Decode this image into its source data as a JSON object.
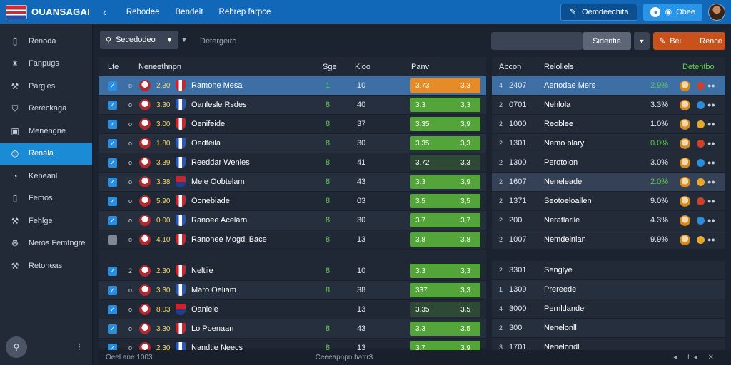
{
  "app": {
    "title": "OUANSAGAI"
  },
  "topnav": [
    "Rebodee",
    "Bendeit",
    "Rebrep farpce"
  ],
  "topright": {
    "primary_label": "Oemdeechita",
    "secondary_label": "Obee"
  },
  "sidebar": {
    "items": [
      {
        "label": "Renoda",
        "icon": "page-icon",
        "active": false
      },
      {
        "label": "Fanpugs",
        "icon": "gear-icon",
        "active": false
      },
      {
        "label": "Pargles",
        "icon": "tools-icon",
        "active": false
      },
      {
        "label": "Rereckaga",
        "icon": "shield-icon",
        "active": false
      },
      {
        "label": "Menengne",
        "icon": "window-icon",
        "active": false
      },
      {
        "label": "Renala",
        "icon": "globe-icon",
        "active": true
      },
      {
        "label": "Keneanl",
        "icon": "compass-icon",
        "active": false
      },
      {
        "label": "Femos",
        "icon": "page-icon",
        "active": false
      },
      {
        "label": "Fehlge",
        "icon": "tools-icon",
        "active": false
      },
      {
        "label": "Neros Femtngre",
        "icon": "wrench-icon",
        "active": false
      },
      {
        "label": "Retoheas",
        "icon": "tools-icon",
        "active": false
      }
    ]
  },
  "filter": {
    "dropdown_label": "Secedodeo",
    "hint": "Detergeiro",
    "select_label": "Sidentie",
    "action_left": "Bei",
    "action_right": "Rence"
  },
  "left_table": {
    "headers": {
      "c1": "Lte",
      "c2": "Neneethnpn",
      "c3": "Sge",
      "c4": "Kloo",
      "c5": "Panv"
    },
    "rows": [
      {
        "pos": "o",
        "rating": "2.30",
        "name": "Ramone Mesa",
        "num": "1",
        "val": "10",
        "b1": "3.73",
        "b2": "3,3",
        "bar": "o",
        "checked": true,
        "style": "sel",
        "club": "clubA"
      },
      {
        "pos": "o",
        "rating": "3.30",
        "name": "Oanlesle Rsdes",
        "num": "8",
        "val": "40",
        "b1": "3.3",
        "b2": "3,3",
        "bar": "g",
        "checked": true,
        "style": "alt",
        "club": "clubB"
      },
      {
        "pos": "o",
        "rating": "3.00",
        "name": "Oenifeide",
        "num": "8",
        "val": "37",
        "b1": "3.35",
        "b2": "3,9",
        "bar": "g",
        "checked": true,
        "style": "",
        "club": "clubA"
      },
      {
        "pos": "o",
        "rating": "1.80",
        "name": "Oedteila",
        "num": "8",
        "val": "30",
        "b1": "3.35",
        "b2": "3,3",
        "bar": "g",
        "checked": true,
        "style": "alt",
        "club": "clubB"
      },
      {
        "pos": "o",
        "rating": "3.39",
        "name": "Reeddar Wenles",
        "num": "8",
        "val": "41",
        "b1": "3.72",
        "b2": "3,3",
        "bar": "dk",
        "checked": true,
        "style": "",
        "club": "clubB"
      },
      {
        "pos": "o",
        "rating": "3.38",
        "name": "Meie Oobtelam",
        "num": "8",
        "val": "43",
        "b1": "3.3",
        "b2": "3,9",
        "bar": "g",
        "checked": true,
        "style": "alt",
        "club": "clubC"
      },
      {
        "pos": "o",
        "rating": "5.90",
        "name": "Oonebiade",
        "num": "8",
        "val": "03",
        "b1": "3.5",
        "b2": "3,5",
        "bar": "g",
        "checked": true,
        "style": "",
        "club": "clubA"
      },
      {
        "pos": "o",
        "rating": "0.00",
        "name": "Ranoee Acelarn",
        "num": "8",
        "val": "30",
        "b1": "3.7",
        "b2": "3,7",
        "bar": "g",
        "checked": true,
        "style": "alt",
        "club": "clubB"
      },
      {
        "pos": "o",
        "rating": "4.10",
        "name": "Ranonee Mogdi Bace",
        "num": "8",
        "val": "13",
        "b1": "3.8",
        "b2": "3,8",
        "bar": "g",
        "checked": false,
        "style": "",
        "club": "clubA"
      },
      {
        "pos": "2",
        "rating": "2.30",
        "name": "Neltiie",
        "num": "8",
        "val": "10",
        "b1": "3.3",
        "b2": "3,3",
        "bar": "g",
        "checked": true,
        "style": "gap",
        "club": "clubA"
      },
      {
        "pos": "o",
        "rating": "3.30",
        "name": "Maro Oeliam",
        "num": "8",
        "val": "38",
        "b1": "337",
        "b2": "3,3",
        "bar": "g",
        "checked": true,
        "style": "alt",
        "club": "clubB"
      },
      {
        "pos": "o",
        "rating": "8.03",
        "name": "Oanlele",
        "num": "",
        "val": "13",
        "b1": "3.35",
        "b2": "3,5",
        "bar": "dk",
        "checked": true,
        "style": "",
        "club": "clubC"
      },
      {
        "pos": "o",
        "rating": "3.30",
        "name": "Lo Poenaan",
        "num": "8",
        "val": "43",
        "b1": "3.3",
        "b2": "3,5",
        "bar": "g",
        "checked": true,
        "style": "alt",
        "club": "clubA"
      },
      {
        "pos": "o",
        "rating": "2.30",
        "name": "Nandtie Neecs",
        "num": "8",
        "val": "13",
        "b1": "3.7",
        "b2": "3,9",
        "bar": "g",
        "checked": true,
        "style": "",
        "club": "clubB"
      }
    ]
  },
  "right_panel": {
    "headers": {
      "c1": "Abcon",
      "c2": "Reloliels",
      "c3": "Detentbo"
    },
    "rows": [
      {
        "idx": "4",
        "code": "2407",
        "name": "Aertodae Mers",
        "pct": "2.9%",
        "green": true,
        "style": "sel"
      },
      {
        "idx": "2",
        "code": "0701",
        "name": "Nehlola",
        "pct": "3.3%",
        "green": false,
        "style": ""
      },
      {
        "idx": "2",
        "code": "1000",
        "name": "Reoblee",
        "pct": "1.0%",
        "green": false,
        "style": ""
      },
      {
        "idx": "2",
        "code": "1301",
        "name": "Nemo blary",
        "pct": "0.0%",
        "green": true,
        "style": ""
      },
      {
        "idx": "2",
        "code": "1300",
        "name": "Perotolon",
        "pct": "3.0%",
        "green": false,
        "style": ""
      },
      {
        "idx": "2",
        "code": "1607",
        "name": "Neneleade",
        "pct": "2.0%",
        "green": true,
        "style": "hl"
      },
      {
        "idx": "2",
        "code": "1371",
        "name": "Seotoeloallen",
        "pct": "9.0%",
        "green": false,
        "style": ""
      },
      {
        "idx": "2",
        "code": "200",
        "name": "Neratlarlle",
        "pct": "4.3%",
        "green": false,
        "style": ""
      },
      {
        "idx": "2",
        "code": "1007",
        "name": "Nemdelnlan",
        "pct": "9.9%",
        "green": false,
        "style": ""
      }
    ],
    "rows2": [
      {
        "idx": "2",
        "code": "3301",
        "name": "Senglye"
      },
      {
        "idx": "1",
        "code": "1309",
        "name": "Prereede"
      },
      {
        "idx": "4",
        "code": "3000",
        "name": "Pernldandel"
      },
      {
        "idx": "2",
        "code": "300",
        "name": "Nenelonll"
      },
      {
        "idx": "3",
        "code": "1701",
        "name": "Nenelondl"
      }
    ]
  },
  "status": {
    "left": "Oeel ane 1003",
    "center": "Ceeeapnpn hatrr3"
  },
  "colors": {
    "topbar": "#1167b8",
    "active": "#1b8bd6",
    "green_bar": "#53a53a",
    "orange_bar": "#e58b27",
    "orange_btn": "#c9521c"
  }
}
